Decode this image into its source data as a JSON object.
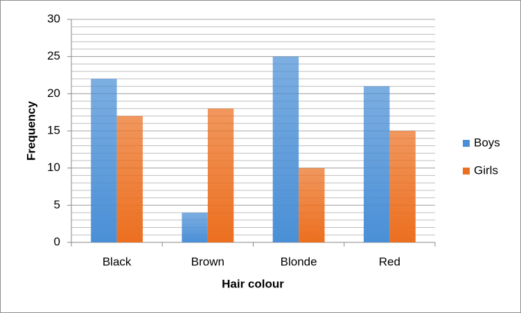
{
  "chart_data": {
    "type": "bar",
    "x_label": "Hair colour",
    "y_label": "Frequency",
    "categories": [
      "Black",
      "Brown",
      "Blonde",
      "Red"
    ],
    "series": [
      {
        "name": "Boys",
        "color": "#4a8fd6",
        "values": [
          22,
          4,
          25,
          21
        ]
      },
      {
        "name": "Girls",
        "color": "#ec6f1f",
        "values": [
          17,
          18,
          10,
          15
        ]
      }
    ],
    "ylim": [
      0,
      30
    ],
    "yticks": [
      0,
      5,
      10,
      15,
      20,
      25,
      30
    ],
    "grid": true,
    "minor_grid_step": 1,
    "legend": "right"
  }
}
